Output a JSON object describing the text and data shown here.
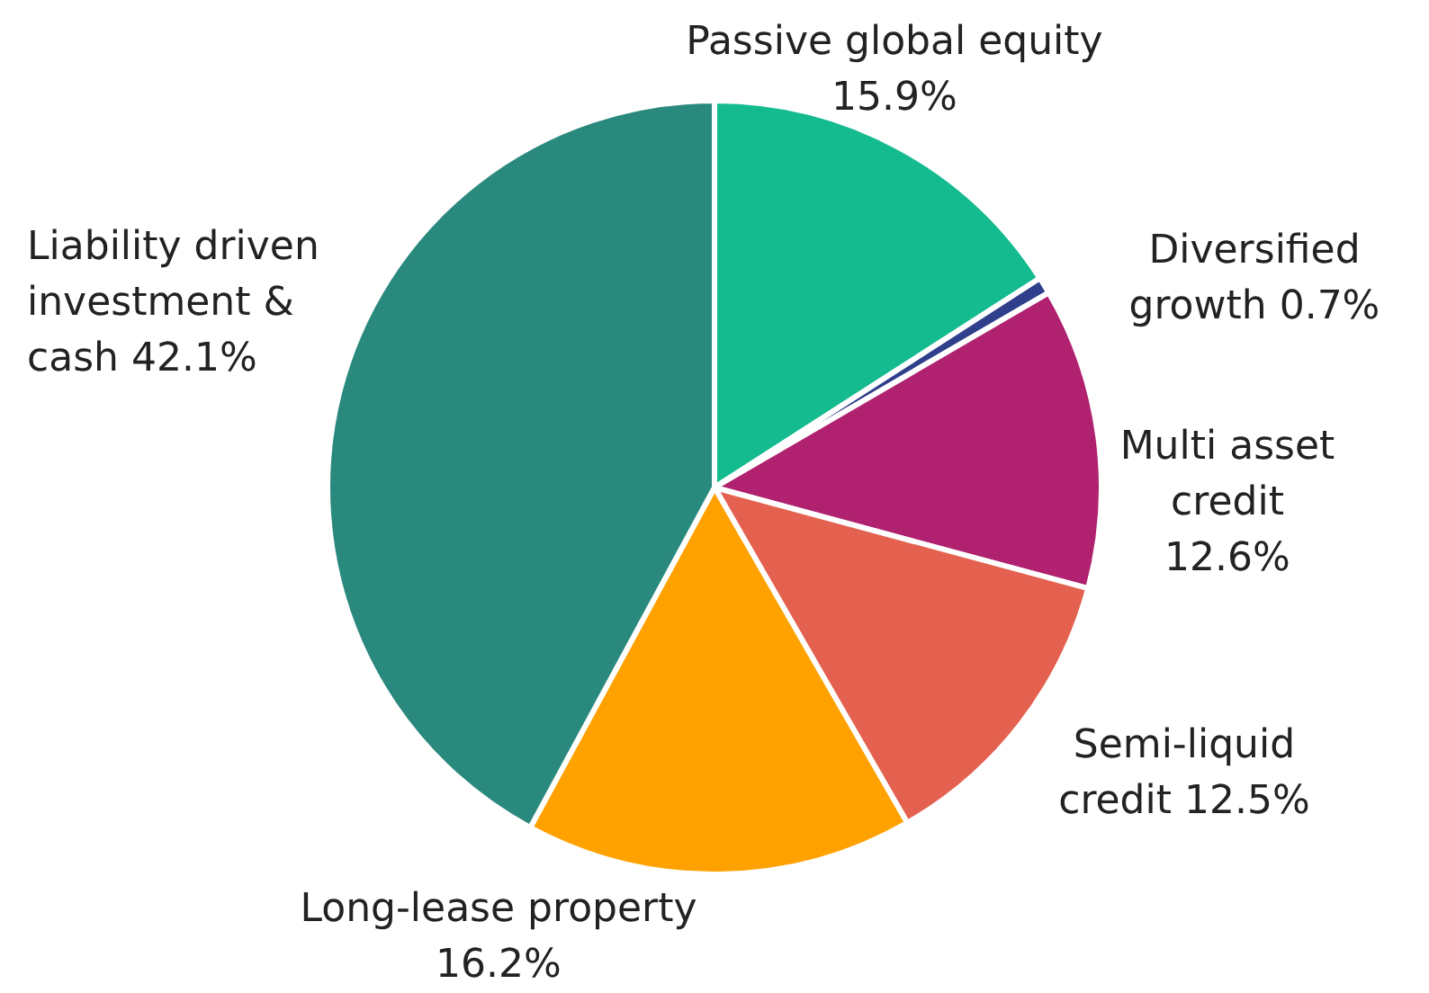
{
  "chart_data": {
    "type": "pie",
    "categories": [
      "Passive global equity",
      "Diversified growth",
      "Multi asset credit",
      "Semi-liquid credit",
      "Long-lease property",
      "Liability driven investment & cash"
    ],
    "values": [
      15.9,
      0.7,
      12.6,
      12.5,
      16.2,
      42.1
    ],
    "value_labels": [
      "15.9%",
      "0.7%",
      "12.6%",
      "12.5%",
      "16.2%",
      "42.1%"
    ],
    "colors": [
      "#13bb8e",
      "#2f3f8c",
      "#b0226f",
      "#e4614f",
      "#ffa200",
      "#2a897d"
    ]
  }
}
